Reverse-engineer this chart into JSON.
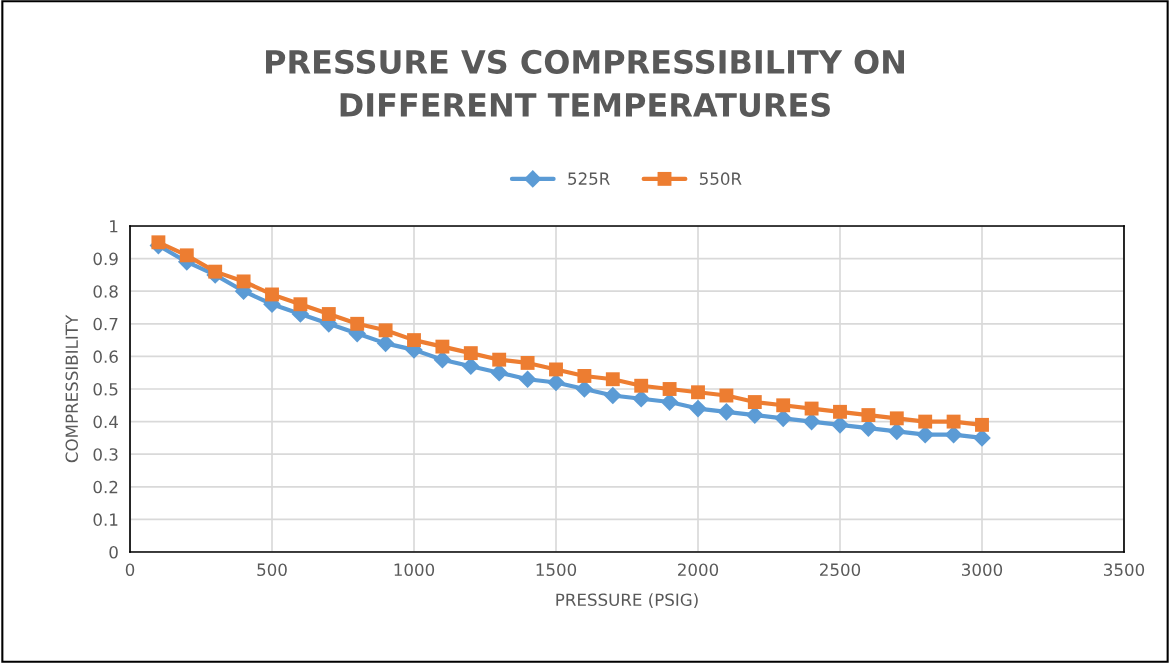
{
  "chart_data": {
    "type": "line",
    "title": "PRESSURE VS COMPRESSIBILITY ON\nDIFFERENT TEMPERATURES",
    "xlabel": "PRESSURE (PSIG)",
    "ylabel": "COMPRESSIBILITY",
    "x": [
      100,
      200,
      300,
      400,
      500,
      600,
      700,
      800,
      900,
      1000,
      1100,
      1200,
      1300,
      1400,
      1500,
      1600,
      1700,
      1800,
      1900,
      2000,
      2100,
      2200,
      2300,
      2400,
      2500,
      2600,
      2700,
      2800,
      2900,
      3000
    ],
    "series": [
      {
        "name": "525R",
        "color": "#5b9bd5",
        "marker": "diamond",
        "values": [
          0.94,
          0.89,
          0.85,
          0.8,
          0.76,
          0.73,
          0.7,
          0.67,
          0.64,
          0.62,
          0.59,
          0.57,
          0.55,
          0.53,
          0.52,
          0.5,
          0.48,
          0.47,
          0.46,
          0.44,
          0.43,
          0.42,
          0.41,
          0.4,
          0.39,
          0.38,
          0.37,
          0.36,
          0.36,
          0.35
        ]
      },
      {
        "name": "550R",
        "color": "#ed7d31",
        "marker": "square",
        "values": [
          0.95,
          0.91,
          0.86,
          0.83,
          0.79,
          0.76,
          0.73,
          0.7,
          0.68,
          0.65,
          0.63,
          0.61,
          0.59,
          0.58,
          0.56,
          0.54,
          0.53,
          0.51,
          0.5,
          0.49,
          0.48,
          0.46,
          0.45,
          0.44,
          0.43,
          0.42,
          0.41,
          0.4,
          0.4,
          0.39
        ]
      }
    ],
    "xlim": [
      0,
      3500
    ],
    "xticks": [
      0,
      500,
      1000,
      1500,
      2000,
      2500,
      3000,
      3500
    ],
    "ylim": [
      0,
      1
    ],
    "yticks": [
      0,
      {
        "value": 0.1,
        "label": "0.1"
      },
      {
        "value": 0.2,
        "label": "0.2"
      },
      {
        "value": 0.3,
        "label": "0.3"
      },
      {
        "value": 0.4,
        "label": "0.4"
      },
      {
        "value": 0.5,
        "label": "0.5"
      },
      {
        "value": 0.6,
        "label": "0.6"
      },
      {
        "value": 0.7,
        "label": "0.7"
      },
      {
        "value": 0.8,
        "label": "0.8"
      },
      {
        "value": 0.9,
        "label": "0.9"
      },
      1
    ],
    "grid": true,
    "legend": "top",
    "line_style": "solid"
  }
}
